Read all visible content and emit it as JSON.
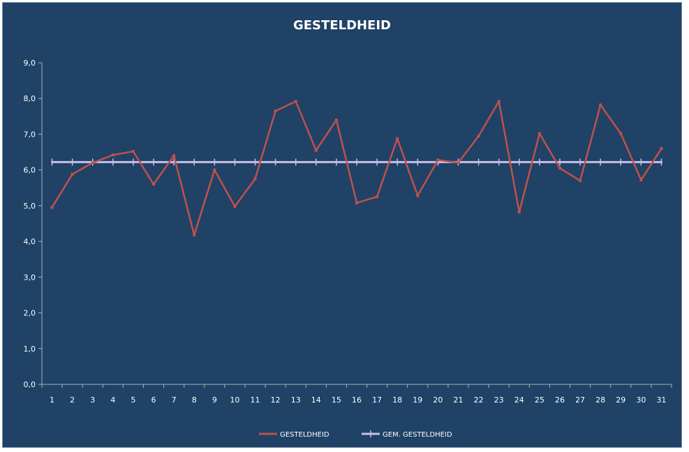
{
  "chart_data": {
    "type": "line",
    "title": "GESTELDHEID",
    "xlabel": "",
    "ylabel": "",
    "ylim": [
      0,
      9
    ],
    "yticks": [
      "0,0",
      "1,0",
      "2,0",
      "3,0",
      "4,0",
      "5,0",
      "6,0",
      "7,0",
      "8,0",
      "9,0"
    ],
    "categories": [
      "1",
      "2",
      "3",
      "4",
      "5",
      "6",
      "7",
      "8",
      "9",
      "10",
      "11",
      "12",
      "13",
      "14",
      "15",
      "16",
      "17",
      "18",
      "19",
      "20",
      "21",
      "22",
      "23",
      "24",
      "25",
      "26",
      "27",
      "28",
      "29",
      "30",
      "31"
    ],
    "grid": false,
    "legend_position": "bottom",
    "series": [
      {
        "name": "GESTELDHEID",
        "color": "#c0504d",
        "values": [
          4.95,
          5.88,
          6.2,
          6.42,
          6.52,
          5.6,
          6.4,
          4.18,
          6.0,
          4.98,
          5.75,
          7.65,
          7.92,
          6.55,
          7.4,
          5.08,
          5.25,
          6.88,
          5.28,
          6.28,
          6.2,
          6.95,
          7.92,
          4.82,
          7.02,
          6.05,
          5.7,
          7.82,
          7.02,
          5.72,
          6.6
        ]
      },
      {
        "name": "GEM. GESTELDHEID",
        "color": "#c8bfe7",
        "values": [
          6.22,
          6.22,
          6.22,
          6.22,
          6.22,
          6.22,
          6.22,
          6.22,
          6.22,
          6.22,
          6.22,
          6.22,
          6.22,
          6.22,
          6.22,
          6.22,
          6.22,
          6.22,
          6.22,
          6.22,
          6.22,
          6.22,
          6.22,
          6.22,
          6.22,
          6.22,
          6.22,
          6.22,
          6.22,
          6.22,
          6.22
        ]
      }
    ]
  }
}
